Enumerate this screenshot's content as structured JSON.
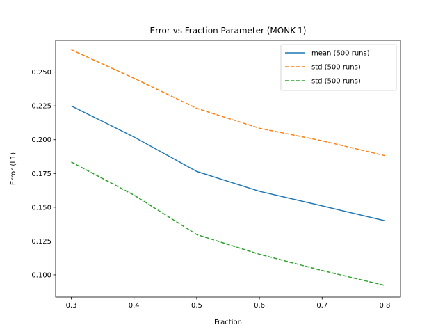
{
  "chart_data": {
    "type": "line",
    "title": "Error vs Fraction Parameter (MONK-1)",
    "xlabel": "Fraction",
    "ylabel": "Error (L1)",
    "xlim": [
      0.275,
      0.825
    ],
    "ylim": [
      0.0835,
      0.2735
    ],
    "xticks": [
      0.3,
      0.4,
      0.5,
      0.6,
      0.7,
      0.8
    ],
    "xtick_labels": [
      "0.3",
      "0.4",
      "0.5",
      "0.6",
      "0.7",
      "0.8"
    ],
    "yticks": [
      0.1,
      0.125,
      0.15,
      0.175,
      0.2,
      0.225,
      0.25
    ],
    "ytick_labels": [
      "0.100",
      "0.125",
      "0.150",
      "0.175",
      "0.200",
      "0.225",
      "0.250"
    ],
    "grid": false,
    "legend_position": "top-right",
    "x": [
      0.3,
      0.4,
      0.5,
      0.6,
      0.7,
      0.8
    ],
    "series": [
      {
        "name": "mean (500 runs)",
        "style": "solid",
        "color": "#1f77b4",
        "values": [
          0.225,
          0.202,
          0.1765,
          0.1618,
          0.151,
          0.14
        ]
      },
      {
        "name": "std (500 runs)",
        "style": "dashed",
        "color": "#ff7f0e",
        "values": [
          0.2665,
          0.2455,
          0.2232,
          0.2085,
          0.1992,
          0.1882
        ]
      },
      {
        "name": "std (500 runs)",
        "style": "dashed",
        "color": "#2ca02c",
        "values": [
          0.1835,
          0.159,
          0.1298,
          0.1152,
          0.1032,
          0.0922
        ]
      }
    ]
  }
}
